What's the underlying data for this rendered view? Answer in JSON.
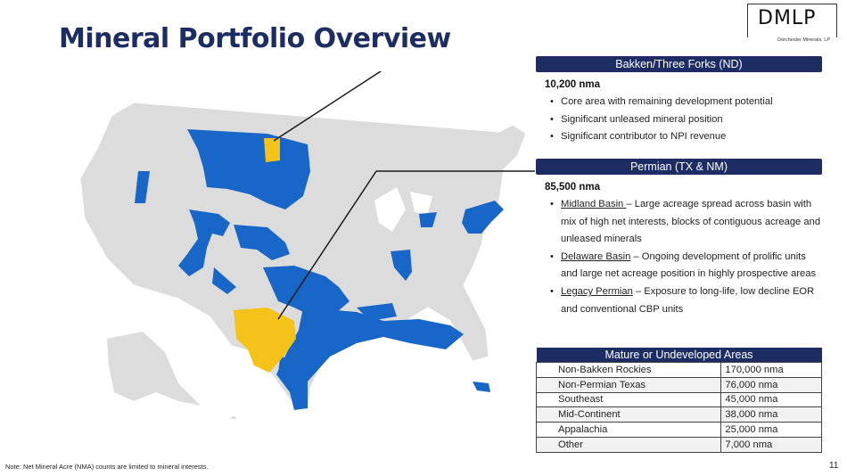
{
  "title": "Mineral Portfolio Overview",
  "logo": {
    "name": "DMLP",
    "subtitle": "Dorchester Minerals, LP"
  },
  "bakken": {
    "header": "Bakken/Three Forks (ND)",
    "stat": "10,200 nma",
    "bullets": [
      "Core area with remaining development potential",
      "Significant unleased mineral position",
      "Significant contributor to NPI revenue"
    ]
  },
  "permian": {
    "header": "Permian (TX & NM)",
    "stat": "85,500 nma",
    "bullets": [
      {
        "label": "Midland Basin ",
        "text": "– Large acreage spread across basin with mix of high net interests, blocks of contiguous acreage and unleased minerals"
      },
      {
        "label": "Delaware Basin",
        "text": " – Ongoing development of prolific units and large net acreage position in highly prospective areas"
      },
      {
        "label": "Legacy Permian",
        "text": " – Exposure to long-life, low decline EOR and conventional CBP units"
      }
    ]
  },
  "mature": {
    "header": "Mature or Undeveloped Areas",
    "rows": [
      {
        "area": "Non-Bakken Rockies",
        "value": "170,000 nma"
      },
      {
        "area": "Non-Permian Texas",
        "value": "76,000 nma"
      },
      {
        "area": "Southeast",
        "value": "45,000 nma"
      },
      {
        "area": "Mid-Continent",
        "value": "38,000 nma"
      },
      {
        "area": "Appalachia",
        "value": "25,000 nma"
      },
      {
        "area": "Other",
        "value": "7,000 nma"
      }
    ]
  },
  "note": "Note: Net Mineral Acre (NMA) counts are limited to mineral interests.",
  "page_number": "11",
  "colors": {
    "navy": "#1d2d63",
    "blue": "#1766c8",
    "yellow": "#f5c21a",
    "land": "#dcdcdc"
  }
}
